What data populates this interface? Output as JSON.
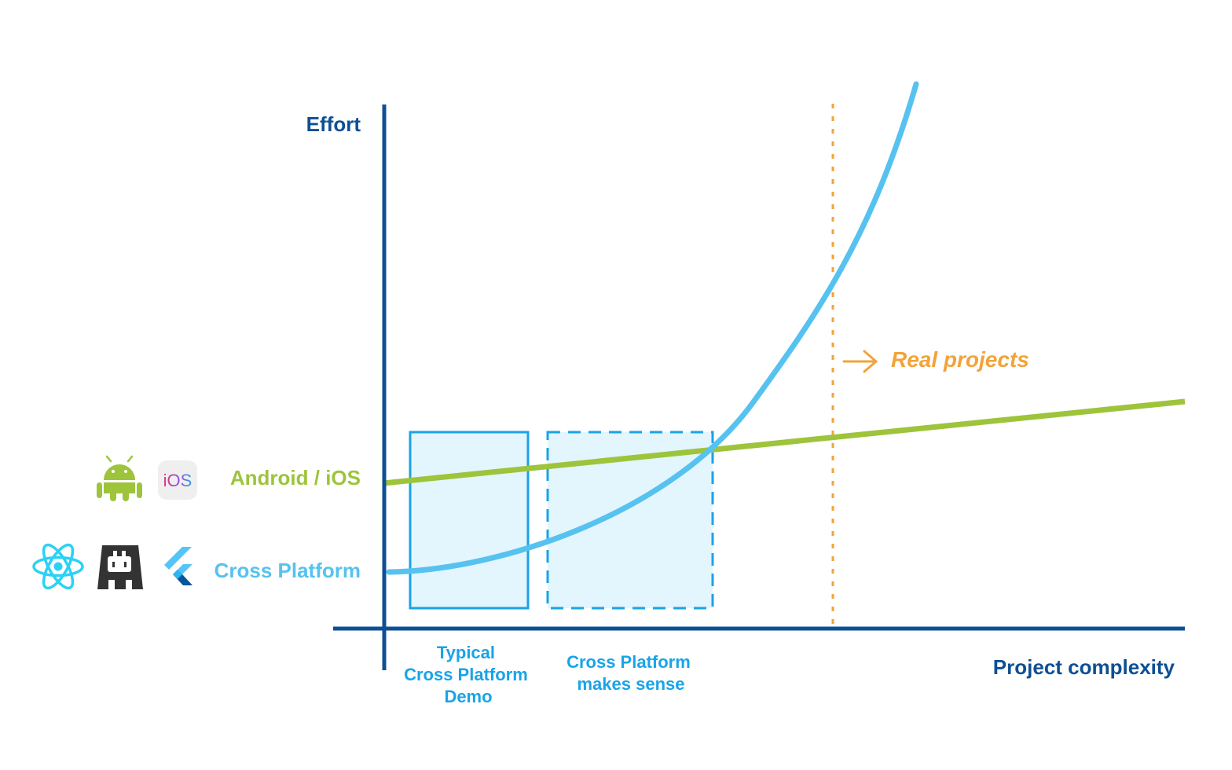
{
  "axes": {
    "y_label": "Effort",
    "x_label": "Project complexity"
  },
  "lines": {
    "native": {
      "label": "Android / iOS",
      "color": "#9dc43b"
    },
    "cross": {
      "label": "Cross Platform",
      "color": "#56c2f0"
    }
  },
  "regions": {
    "demo": {
      "lines": [
        "Typical",
        "Cross Platform",
        "Demo"
      ]
    },
    "sense": {
      "lines": [
        "Cross Platform",
        "makes sense"
      ]
    }
  },
  "marker": {
    "label": "Real projects",
    "color": "#f2a33a"
  },
  "icons": {
    "ios_text": "iOS"
  },
  "colors": {
    "axis": "#0d4f94",
    "box_stroke": "#1aa3e8",
    "box_fill": "#e3f5fd",
    "region_text": "#1aa3e8"
  }
}
